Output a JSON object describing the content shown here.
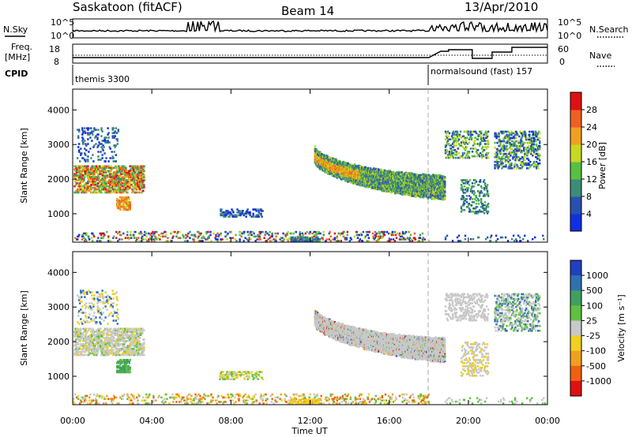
{
  "header": {
    "station": "Saskatoon (fitACF)",
    "beam": "Beam 14",
    "date": "13/Apr/2010"
  },
  "noise_panel": {
    "left_label": "N.Sky",
    "right_label": "N.Search",
    "left_ticks": [
      "10^5",
      "10^0"
    ],
    "right_ticks": [
      "10^5",
      "10^0"
    ]
  },
  "freq_panel": {
    "left_label_1": "Freq.",
    "left_label_2": "[MHz]",
    "left_ticks": [
      "18",
      "8"
    ],
    "right_label": "Nave",
    "right_ticks": [
      "60",
      "0"
    ]
  },
  "cpid": {
    "label": "CPID",
    "programs": [
      {
        "name": "themis 3300",
        "start_hour": 0
      },
      {
        "name": "normalsound (fast) 157",
        "start_hour": 18
      }
    ]
  },
  "chart_data": [
    {
      "type": "heatmap",
      "name": "power",
      "ylabel": "Slant Range [km]",
      "ylim": [
        180,
        4600
      ],
      "yticks": [
        "1000",
        "2000",
        "3000",
        "4000"
      ],
      "xlim_hours": [
        0,
        24
      ],
      "colorbar_label": "Power [dB]",
      "colorbar_ticks": [
        "4",
        "8",
        "12",
        "16",
        "20",
        "24",
        "28"
      ],
      "colors": [
        "#1030e0",
        "#2850b0",
        "#3c8c78",
        "#58c040",
        "#c8d820",
        "#f0a020",
        "#f06020",
        "#e01010"
      ]
    },
    {
      "type": "heatmap",
      "name": "velocity",
      "ylabel": "Slant Range [km]",
      "ylim": [
        180,
        4600
      ],
      "yticks": [
        "1000",
        "2000",
        "3000",
        "4000"
      ],
      "xlim_hours": [
        0,
        24
      ],
      "colorbar_label": "Velocity [m s⁻¹]",
      "colorbar_ticks": [
        "1000",
        "500",
        "100",
        "25",
        "-25",
        "-100",
        "-500",
        "-1000"
      ],
      "colors": [
        "#2040c0",
        "#3070b0",
        "#40a060",
        "#60c040",
        "#c8c8c8",
        "#f0d020",
        "#f0a020",
        "#f06010",
        "#e01010"
      ],
      "xticks": [
        "00:00",
        "04:00",
        "08:00",
        "12:00",
        "16:00",
        "20:00",
        "00:00"
      ],
      "xlabel": "Time UT"
    }
  ]
}
